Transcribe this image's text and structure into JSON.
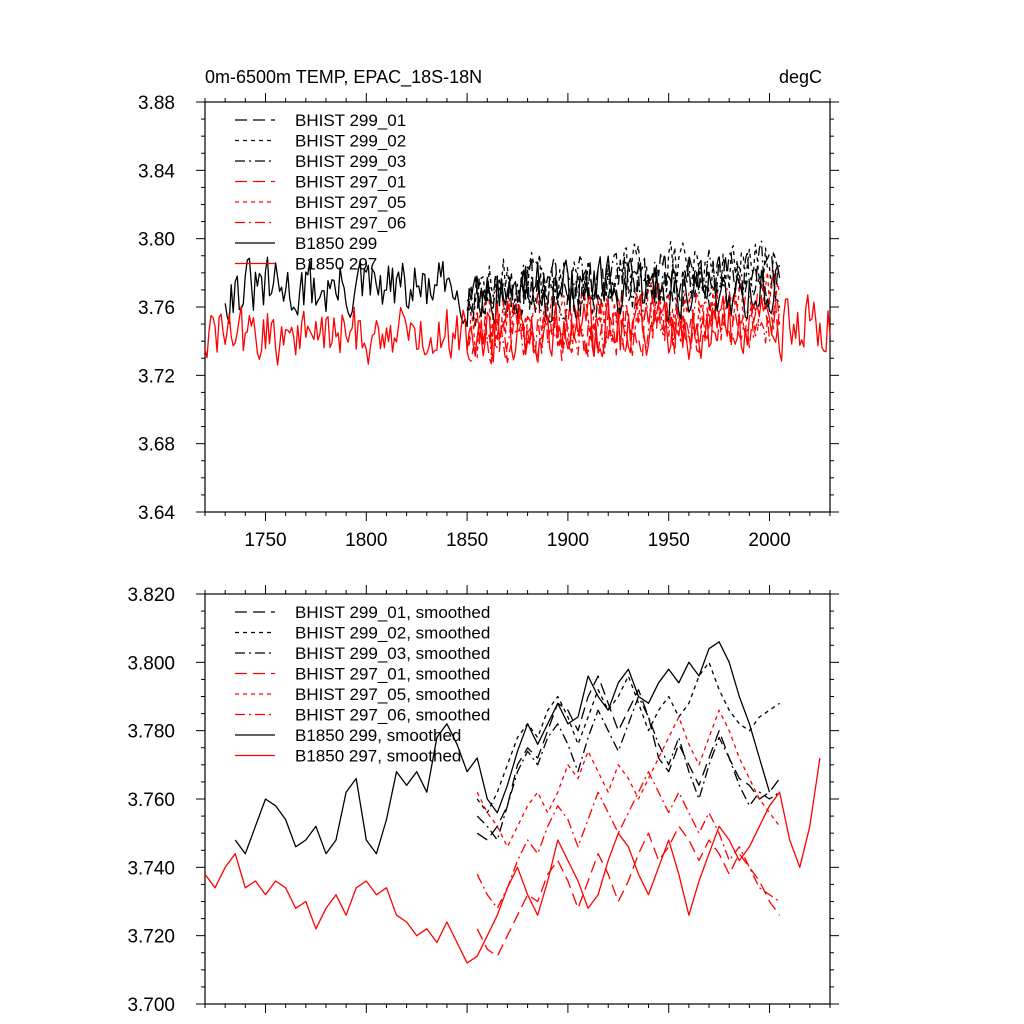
{
  "chart_data": [
    {
      "type": "line",
      "title": "0m-6500m TEMP, EPAC_18S-18N",
      "units": "degC",
      "xlabel": "",
      "ylabel": "",
      "xlim": [
        1720,
        2030
      ],
      "ylim": [
        3.64,
        3.88
      ],
      "xticks": [
        1750,
        1800,
        1850,
        1900,
        1950,
        2000
      ],
      "xtick_labels": [
        "1750",
        "1800",
        "1850",
        "1900",
        "1950",
        "2000"
      ],
      "yticks": [
        3.64,
        3.68,
        3.72,
        3.76,
        3.8,
        3.84,
        3.88
      ],
      "ytick_labels": [
        "3.64",
        "3.68",
        "3.72",
        "3.76",
        "3.80",
        "3.84",
        "3.88"
      ],
      "legend_position": "top-left",
      "grid": false,
      "series": [
        {
          "name": "BHIST 299_01",
          "color": "#000000",
          "dash": "long-dash",
          "start": 1850,
          "end": 2005,
          "base": 3.768,
          "trend": 0.012,
          "amp": 0.024,
          "seed": 11
        },
        {
          "name": "BHIST 299_02",
          "color": "#000000",
          "dash": "short-dash",
          "start": 1850,
          "end": 2005,
          "base": 3.772,
          "trend": 0.01,
          "amp": 0.025,
          "seed": 12
        },
        {
          "name": "BHIST 299_03",
          "color": "#000000",
          "dash": "dash-dot",
          "start": 1850,
          "end": 2005,
          "base": 3.766,
          "trend": 0.012,
          "amp": 0.024,
          "seed": 13
        },
        {
          "name": "BHIST 297_01",
          "color": "#ff0000",
          "dash": "long-dash",
          "start": 1850,
          "end": 2005,
          "base": 3.742,
          "trend": 0.012,
          "amp": 0.024,
          "seed": 21
        },
        {
          "name": "BHIST 297_05",
          "color": "#ff0000",
          "dash": "short-dash",
          "start": 1850,
          "end": 2005,
          "base": 3.748,
          "trend": 0.014,
          "amp": 0.024,
          "seed": 22
        },
        {
          "name": "BHIST 297_06",
          "color": "#ff0000",
          "dash": "dash-dot",
          "start": 1850,
          "end": 2005,
          "base": 3.745,
          "trend": 0.01,
          "amp": 0.024,
          "seed": 23
        },
        {
          "name": "B1850 299",
          "color": "#000000",
          "dash": "solid",
          "start": 1730,
          "end": 2005,
          "base": 3.77,
          "trend": 0.0,
          "amp": 0.024,
          "seed": 31
        },
        {
          "name": "B1850 297",
          "color": "#ff0000",
          "dash": "solid",
          "start": 1720,
          "end": 2030,
          "base": 3.743,
          "trend": 0.006,
          "amp": 0.024,
          "seed": 32
        }
      ]
    },
    {
      "type": "line",
      "title": "",
      "xlabel": "",
      "ylabel": "",
      "xlim": [
        1720,
        2030
      ],
      "ylim": [
        3.7,
        3.82
      ],
      "xticks": [
        1750,
        1800,
        1850,
        1900,
        1950,
        2000
      ],
      "xtick_labels": [],
      "yticks": [
        3.7,
        3.72,
        3.74,
        3.76,
        3.78,
        3.8,
        3.82
      ],
      "ytick_labels": [
        "3.700",
        "3.720",
        "3.740",
        "3.760",
        "3.780",
        "3.800",
        "3.820"
      ],
      "legend_position": "top-left",
      "grid": false,
      "series": [
        {
          "name": "BHIST 299_01, smoothed",
          "color": "#000000",
          "dash": "long-dash",
          "x": [
            1855,
            1860,
            1865,
            1870,
            1875,
            1880,
            1885,
            1890,
            1895,
            1900,
            1905,
            1910,
            1915,
            1920,
            1925,
            1930,
            1935,
            1940,
            1945,
            1950,
            1955,
            1960,
            1965,
            1970,
            1975,
            1980,
            1985,
            1990,
            1995,
            2000,
            2005
          ],
          "y": [
            3.75,
            3.748,
            3.752,
            3.758,
            3.77,
            3.775,
            3.772,
            3.78,
            3.788,
            3.786,
            3.78,
            3.79,
            3.796,
            3.788,
            3.78,
            3.786,
            3.792,
            3.784,
            3.772,
            3.768,
            3.776,
            3.77,
            3.764,
            3.772,
            3.78,
            3.772,
            3.766,
            3.764,
            3.76,
            3.762,
            3.766
          ]
        },
        {
          "name": "BHIST 299_02, smoothed",
          "color": "#000000",
          "dash": "short-dash",
          "x": [
            1855,
            1860,
            1865,
            1870,
            1875,
            1880,
            1885,
            1890,
            1895,
            1900,
            1905,
            1910,
            1915,
            1920,
            1925,
            1930,
            1935,
            1940,
            1945,
            1950,
            1955,
            1960,
            1965,
            1970,
            1975,
            1980,
            1985,
            1990,
            1995,
            2000,
            2005
          ],
          "y": [
            3.76,
            3.756,
            3.762,
            3.77,
            3.778,
            3.782,
            3.778,
            3.786,
            3.79,
            3.784,
            3.776,
            3.784,
            3.792,
            3.786,
            3.79,
            3.796,
            3.788,
            3.78,
            3.786,
            3.79,
            3.784,
            3.788,
            3.796,
            3.8,
            3.792,
            3.786,
            3.782,
            3.78,
            3.784,
            3.786,
            3.788
          ]
        },
        {
          "name": "BHIST 299_03, smoothed",
          "color": "#000000",
          "dash": "dash-dot",
          "x": [
            1855,
            1860,
            1865,
            1870,
            1875,
            1880,
            1885,
            1890,
            1895,
            1900,
            1905,
            1910,
            1915,
            1920,
            1925,
            1930,
            1935,
            1940,
            1945,
            1950,
            1955,
            1960,
            1965,
            1970,
            1975,
            1980,
            1985,
            1990,
            1995,
            2000,
            2005
          ],
          "y": [
            3.755,
            3.752,
            3.748,
            3.758,
            3.768,
            3.774,
            3.77,
            3.778,
            3.782,
            3.776,
            3.768,
            3.778,
            3.786,
            3.78,
            3.774,
            3.782,
            3.79,
            3.784,
            3.776,
            3.77,
            3.778,
            3.768,
            3.76,
            3.77,
            3.778,
            3.772,
            3.764,
            3.758,
            3.762,
            3.76,
            3.762
          ]
        },
        {
          "name": "BHIST 297_01, smoothed",
          "color": "#ff0000",
          "dash": "long-dash",
          "x": [
            1855,
            1860,
            1865,
            1870,
            1875,
            1880,
            1885,
            1890,
            1895,
            1900,
            1905,
            1910,
            1915,
            1920,
            1925,
            1930,
            1935,
            1940,
            1945,
            1950,
            1955,
            1960,
            1965,
            1970,
            1975,
            1980,
            1985,
            1990,
            1995,
            2000,
            2005
          ],
          "y": [
            3.722,
            3.716,
            3.714,
            3.72,
            3.726,
            3.732,
            3.73,
            3.738,
            3.742,
            3.736,
            3.728,
            3.736,
            3.744,
            3.738,
            3.73,
            3.736,
            3.744,
            3.75,
            3.742,
            3.746,
            3.752,
            3.748,
            3.742,
            3.748,
            3.744,
            3.738,
            3.744,
            3.74,
            3.736,
            3.73,
            3.726
          ]
        },
        {
          "name": "BHIST 297_05, smoothed",
          "color": "#ff0000",
          "dash": "short-dash",
          "x": [
            1855,
            1860,
            1865,
            1870,
            1875,
            1880,
            1885,
            1890,
            1895,
            1900,
            1905,
            1910,
            1915,
            1920,
            1925,
            1930,
            1935,
            1940,
            1945,
            1950,
            1955,
            1960,
            1965,
            1970,
            1975,
            1980,
            1985,
            1990,
            1995,
            2000,
            2005
          ],
          "y": [
            3.762,
            3.756,
            3.752,
            3.746,
            3.752,
            3.758,
            3.762,
            3.756,
            3.762,
            3.77,
            3.766,
            3.774,
            3.768,
            3.762,
            3.77,
            3.766,
            3.76,
            3.766,
            3.772,
            3.778,
            3.784,
            3.776,
            3.77,
            3.778,
            3.786,
            3.78,
            3.772,
            3.766,
            3.76,
            3.756,
            3.752
          ]
        },
        {
          "name": "BHIST 297_06, smoothed",
          "color": "#ff0000",
          "dash": "dash-dot",
          "x": [
            1855,
            1860,
            1865,
            1870,
            1875,
            1880,
            1885,
            1890,
            1895,
            1900,
            1905,
            1910,
            1915,
            1920,
            1925,
            1930,
            1935,
            1940,
            1945,
            1950,
            1955,
            1960,
            1965,
            1970,
            1975,
            1980,
            1985,
            1990,
            1995,
            2000,
            2005
          ],
          "y": [
            3.738,
            3.732,
            3.728,
            3.734,
            3.742,
            3.748,
            3.744,
            3.752,
            3.758,
            3.754,
            3.746,
            3.754,
            3.762,
            3.756,
            3.75,
            3.756,
            3.762,
            3.768,
            3.762,
            3.756,
            3.762,
            3.756,
            3.75,
            3.756,
            3.75,
            3.742,
            3.746,
            3.74,
            3.734,
            3.732,
            3.73
          ]
        },
        {
          "name": "B1850 299, smoothed",
          "color": "#000000",
          "dash": "solid",
          "x": [
            1735,
            1740,
            1745,
            1750,
            1755,
            1760,
            1765,
            1770,
            1775,
            1780,
            1785,
            1790,
            1795,
            1800,
            1805,
            1810,
            1815,
            1820,
            1825,
            1830,
            1835,
            1840,
            1845,
            1850,
            1855,
            1860,
            1865,
            1870,
            1875,
            1880,
            1885,
            1890,
            1895,
            1900,
            1905,
            1910,
            1915,
            1920,
            1925,
            1930,
            1935,
            1940,
            1945,
            1950,
            1955,
            1960,
            1965,
            1970,
            1975,
            1980,
            1985,
            1990,
            1995,
            2000
          ],
          "y": [
            3.748,
            3.744,
            3.752,
            3.76,
            3.758,
            3.754,
            3.746,
            3.748,
            3.752,
            3.744,
            3.748,
            3.762,
            3.766,
            3.748,
            3.744,
            3.754,
            3.768,
            3.764,
            3.768,
            3.762,
            3.778,
            3.782,
            3.776,
            3.768,
            3.772,
            3.76,
            3.756,
            3.764,
            3.774,
            3.782,
            3.776,
            3.782,
            3.788,
            3.782,
            3.784,
            3.796,
            3.79,
            3.786,
            3.794,
            3.798,
            3.79,
            3.788,
            3.794,
            3.798,
            3.794,
            3.8,
            3.796,
            3.804,
            3.806,
            3.8,
            3.79,
            3.782,
            3.772,
            3.762
          ]
        },
        {
          "name": "B1850 297, smoothed",
          "color": "#ff0000",
          "dash": "solid",
          "x": [
            1720,
            1725,
            1730,
            1735,
            1740,
            1745,
            1750,
            1755,
            1760,
            1765,
            1770,
            1775,
            1780,
            1785,
            1790,
            1795,
            1800,
            1805,
            1810,
            1815,
            1820,
            1825,
            1830,
            1835,
            1840,
            1845,
            1850,
            1855,
            1860,
            1865,
            1870,
            1875,
            1880,
            1885,
            1890,
            1895,
            1900,
            1905,
            1910,
            1915,
            1920,
            1925,
            1930,
            1935,
            1940,
            1945,
            1950,
            1955,
            1960,
            1965,
            1970,
            1975,
            1980,
            1985,
            1990,
            1995,
            2000,
            2005,
            2010,
            2015,
            2020,
            2025
          ],
          "y": [
            3.738,
            3.734,
            3.74,
            3.744,
            3.734,
            3.736,
            3.732,
            3.736,
            3.734,
            3.728,
            3.73,
            3.722,
            3.728,
            3.732,
            3.726,
            3.734,
            3.736,
            3.732,
            3.734,
            3.726,
            3.724,
            3.72,
            3.722,
            3.718,
            3.724,
            3.718,
            3.712,
            3.714,
            3.72,
            3.726,
            3.734,
            3.74,
            3.732,
            3.726,
            3.736,
            3.748,
            3.742,
            3.736,
            3.728,
            3.732,
            3.742,
            3.75,
            3.746,
            3.738,
            3.732,
            3.74,
            3.748,
            3.738,
            3.726,
            3.736,
            3.744,
            3.752,
            3.748,
            3.742,
            3.746,
            3.752,
            3.758,
            3.762,
            3.748,
            3.74,
            3.752,
            3.772
          ]
        }
      ]
    }
  ]
}
